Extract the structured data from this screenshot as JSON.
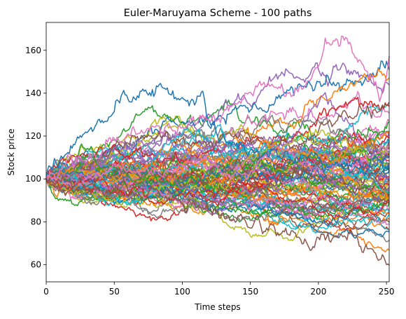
{
  "chart_data": {
    "type": "line",
    "title": "Euler-Maruyama Scheme - 100 paths",
    "xlabel": "Time steps",
    "ylabel": "Stock price",
    "xlim": [
      0,
      252
    ],
    "ylim": [
      52,
      173
    ],
    "x_ticks": [
      0,
      50,
      100,
      150,
      200,
      250
    ],
    "y_ticks": [
      60,
      80,
      100,
      120,
      140,
      160
    ],
    "grid": false,
    "legend": "none",
    "n_paths": 100,
    "n_steps": 252,
    "initial_value": 100,
    "color_cycle": [
      "#1f77b4",
      "#ff7f0e",
      "#2ca02c",
      "#d62728",
      "#9467bd",
      "#8c564b",
      "#e377c2",
      "#7f7f7f",
      "#bcbd22",
      "#17becf"
    ],
    "highlighted_paths": [
      {
        "color": "#1f77b4",
        "points": [
          [
            0,
            100
          ],
          [
            20,
            118
          ],
          [
            35,
            125
          ],
          [
            45,
            128
          ],
          [
            55,
            138
          ],
          [
            62,
            137
          ],
          [
            70,
            141
          ],
          [
            80,
            140
          ],
          [
            88,
            142
          ],
          [
            95,
            136
          ],
          [
            105,
            134
          ],
          [
            115,
            141
          ],
          [
            120,
            130
          ],
          [
            130,
            120
          ],
          [
            150,
            115
          ],
          [
            200,
            108
          ],
          [
            252,
            105
          ]
        ]
      },
      {
        "color": "#e377c2",
        "points": [
          [
            0,
            100
          ],
          [
            30,
            110
          ],
          [
            60,
            120
          ],
          [
            100,
            125
          ],
          [
            140,
            135
          ],
          [
            165,
            145
          ],
          [
            185,
            140
          ],
          [
            200,
            152
          ],
          [
            205,
            162
          ],
          [
            215,
            165
          ],
          [
            225,
            160
          ],
          [
            235,
            150
          ],
          [
            245,
            140
          ],
          [
            252,
            157
          ]
        ]
      },
      {
        "color": "#8c564b",
        "points": [
          [
            0,
            100
          ],
          [
            40,
            95
          ],
          [
            80,
            93
          ],
          [
            120,
            85
          ],
          [
            150,
            78
          ],
          [
            190,
            72
          ],
          [
            200,
            70
          ],
          [
            215,
            74
          ],
          [
            230,
            70
          ],
          [
            245,
            64
          ],
          [
            252,
            60
          ]
        ]
      }
    ]
  }
}
